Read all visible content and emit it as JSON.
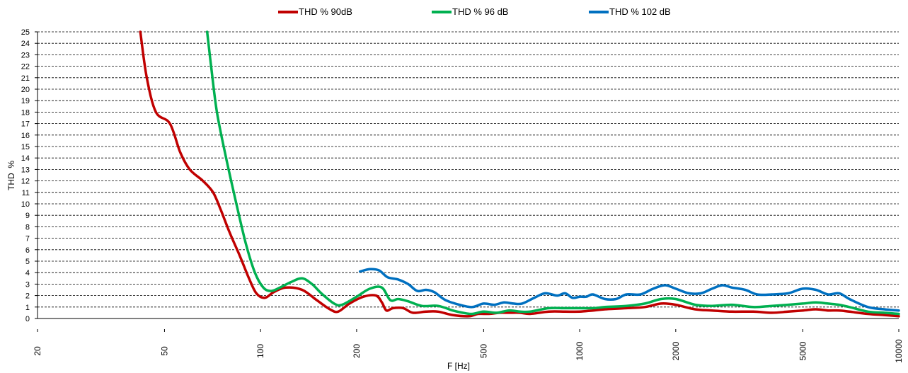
{
  "chart_data": {
    "type": "line",
    "title": "",
    "xlabel": "F [Hz]",
    "ylabel": "THD  %",
    "xscale": "log",
    "xlim": [
      20,
      10000
    ],
    "ylim": [
      0,
      25
    ],
    "xticks": [
      20,
      50,
      100,
      200,
      500,
      1000,
      2000,
      5000,
      10000
    ],
    "xtick_labels": [
      "20",
      "50",
      "100",
      "200",
      "500",
      "1000",
      "2000",
      "5000",
      "10000"
    ],
    "yticks": [
      0,
      1,
      2,
      3,
      4,
      5,
      6,
      7,
      8,
      9,
      10,
      11,
      12,
      13,
      14,
      15,
      16,
      17,
      18,
      19,
      20,
      21,
      22,
      23,
      24,
      25
    ],
    "grid": "horizontal dashed",
    "legend_position": "top",
    "series": [
      {
        "name": "THD % 90dB",
        "color": "#c00000",
        "points": [
          [
            42,
            25
          ],
          [
            44,
            21
          ],
          [
            47,
            18
          ],
          [
            52,
            17
          ],
          [
            56,
            14.5
          ],
          [
            60,
            13
          ],
          [
            66,
            12
          ],
          [
            71,
            11
          ],
          [
            75,
            9.5
          ],
          [
            80,
            7.5
          ],
          [
            86,
            5.5
          ],
          [
            92,
            3.5
          ],
          [
            97,
            2.2
          ],
          [
            103,
            1.8
          ],
          [
            110,
            2.3
          ],
          [
            120,
            2.7
          ],
          [
            135,
            2.5
          ],
          [
            150,
            1.6
          ],
          [
            165,
            0.8
          ],
          [
            175,
            0.6
          ],
          [
            190,
            1.3
          ],
          [
            210,
            1.9
          ],
          [
            230,
            2.0
          ],
          [
            240,
            1.4
          ],
          [
            248,
            0.7
          ],
          [
            260,
            0.9
          ],
          [
            280,
            0.9
          ],
          [
            300,
            0.5
          ],
          [
            330,
            0.6
          ],
          [
            360,
            0.6
          ],
          [
            400,
            0.3
          ],
          [
            450,
            0.2
          ],
          [
            480,
            0.4
          ],
          [
            520,
            0.4
          ],
          [
            560,
            0.5
          ],
          [
            600,
            0.5
          ],
          [
            650,
            0.5
          ],
          [
            700,
            0.4
          ],
          [
            800,
            0.6
          ],
          [
            900,
            0.6
          ],
          [
            1000,
            0.6
          ],
          [
            1100,
            0.7
          ],
          [
            1200,
            0.8
          ],
          [
            1400,
            0.9
          ],
          [
            1600,
            1.0
          ],
          [
            1800,
            1.3
          ],
          [
            2000,
            1.2
          ],
          [
            2300,
            0.8
          ],
          [
            2600,
            0.7
          ],
          [
            3000,
            0.6
          ],
          [
            3500,
            0.6
          ],
          [
            4000,
            0.5
          ],
          [
            4500,
            0.6
          ],
          [
            5000,
            0.7
          ],
          [
            5500,
            0.8
          ],
          [
            6000,
            0.7
          ],
          [
            6500,
            0.7
          ],
          [
            7000,
            0.6
          ],
          [
            8000,
            0.4
          ],
          [
            9000,
            0.3
          ],
          [
            10000,
            0.2
          ]
        ]
      },
      {
        "name": "THD % 96 dB",
        "color": "#00b050",
        "points": [
          [
            68,
            25
          ],
          [
            70,
            22
          ],
          [
            73,
            18
          ],
          [
            78,
            14
          ],
          [
            84,
            10
          ],
          [
            90,
            6.5
          ],
          [
            96,
            4
          ],
          [
            102,
            2.7
          ],
          [
            108,
            2.4
          ],
          [
            115,
            2.7
          ],
          [
            125,
            3.2
          ],
          [
            135,
            3.5
          ],
          [
            145,
            3.0
          ],
          [
            155,
            2.2
          ],
          [
            170,
            1.3
          ],
          [
            180,
            1.2
          ],
          [
            200,
            1.9
          ],
          [
            220,
            2.6
          ],
          [
            240,
            2.7
          ],
          [
            255,
            1.6
          ],
          [
            270,
            1.7
          ],
          [
            290,
            1.5
          ],
          [
            320,
            1.1
          ],
          [
            360,
            1.1
          ],
          [
            400,
            0.7
          ],
          [
            430,
            0.5
          ],
          [
            460,
            0.4
          ],
          [
            500,
            0.6
          ],
          [
            550,
            0.5
          ],
          [
            600,
            0.7
          ],
          [
            650,
            0.6
          ],
          [
            700,
            0.6
          ],
          [
            800,
            0.9
          ],
          [
            900,
            0.9
          ],
          [
            1000,
            0.9
          ],
          [
            1100,
            0.9
          ],
          [
            1200,
            1.0
          ],
          [
            1400,
            1.1
          ],
          [
            1600,
            1.3
          ],
          [
            1800,
            1.7
          ],
          [
            2000,
            1.7
          ],
          [
            2300,
            1.2
          ],
          [
            2600,
            1.1
          ],
          [
            3000,
            1.2
          ],
          [
            3500,
            1.0
          ],
          [
            4000,
            1.1
          ],
          [
            4500,
            1.2
          ],
          [
            5000,
            1.3
          ],
          [
            5500,
            1.4
          ],
          [
            6000,
            1.3
          ],
          [
            6500,
            1.2
          ],
          [
            7000,
            1.0
          ],
          [
            8000,
            0.6
          ],
          [
            9000,
            0.5
          ],
          [
            10000,
            0.4
          ]
        ]
      },
      {
        "name": "THD % 102 dB",
        "color": "#0070c0",
        "points": [
          [
            205,
            4.1
          ],
          [
            220,
            4.3
          ],
          [
            235,
            4.2
          ],
          [
            250,
            3.6
          ],
          [
            270,
            3.4
          ],
          [
            290,
            3.0
          ],
          [
            310,
            2.4
          ],
          [
            330,
            2.5
          ],
          [
            350,
            2.3
          ],
          [
            380,
            1.6
          ],
          [
            420,
            1.2
          ],
          [
            460,
            1.0
          ],
          [
            500,
            1.3
          ],
          [
            540,
            1.2
          ],
          [
            580,
            1.4
          ],
          [
            620,
            1.3
          ],
          [
            660,
            1.3
          ],
          [
            720,
            1.8
          ],
          [
            780,
            2.2
          ],
          [
            850,
            2.0
          ],
          [
            900,
            2.2
          ],
          [
            950,
            1.8
          ],
          [
            1000,
            1.9
          ],
          [
            1050,
            1.9
          ],
          [
            1100,
            2.1
          ],
          [
            1200,
            1.7
          ],
          [
            1300,
            1.7
          ],
          [
            1400,
            2.1
          ],
          [
            1550,
            2.1
          ],
          [
            1700,
            2.6
          ],
          [
            1850,
            2.9
          ],
          [
            2000,
            2.6
          ],
          [
            2200,
            2.2
          ],
          [
            2400,
            2.2
          ],
          [
            2600,
            2.6
          ],
          [
            2800,
            2.9
          ],
          [
            3000,
            2.7
          ],
          [
            3300,
            2.5
          ],
          [
            3600,
            2.1
          ],
          [
            4000,
            2.1
          ],
          [
            4500,
            2.2
          ],
          [
            5000,
            2.6
          ],
          [
            5500,
            2.5
          ],
          [
            6000,
            2.1
          ],
          [
            6500,
            2.2
          ],
          [
            7000,
            1.7
          ],
          [
            8000,
            1.0
          ],
          [
            9000,
            0.8
          ],
          [
            10000,
            0.7
          ]
        ]
      }
    ]
  }
}
